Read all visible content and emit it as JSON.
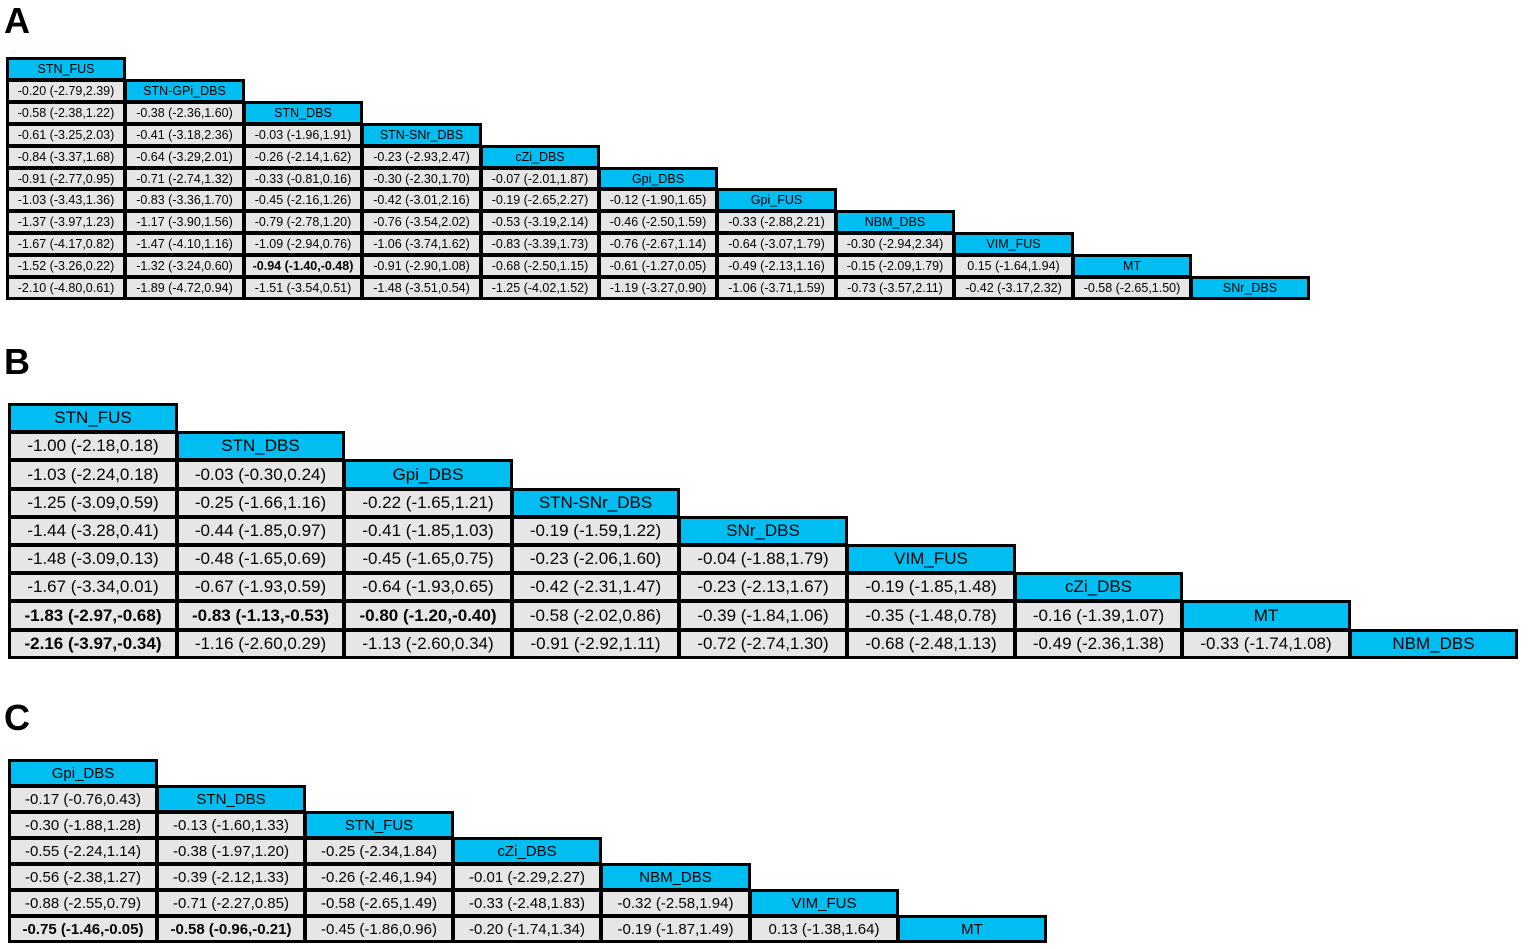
{
  "panels": [
    {
      "label": "A",
      "treatments": [
        "STN_FUS",
        "STN-GPi_DBS",
        "STN_DBS",
        "STN-SNr_DBS",
        "cZi_DBS",
        "Gpi_DBS",
        "Gpi_FUS",
        "NBM_DBS",
        "VIM_FUS",
        "MT",
        "SNr_DBS"
      ],
      "rows": [
        [],
        [
          "-0.20 (-2.79,2.39)"
        ],
        [
          "-0.58 (-2.38,1.22)",
          "-0.38 (-2.36,1.60)"
        ],
        [
          "-0.61 (-3.25,2.03)",
          "-0.41 (-3.18,2.36)",
          "-0.03 (-1.96,1.91)"
        ],
        [
          "-0.84 (-3.37,1.68)",
          "-0.64 (-3.29,2.01)",
          "-0.26 (-2.14,1.62)",
          "-0.23 (-2.93,2.47)"
        ],
        [
          "-0.91 (-2.77,0.95)",
          "-0.71 (-2.74,1.32)",
          "-0.33 (-0.81,0.16)",
          "-0.30 (-2.30,1.70)",
          "-0.07 (-2.01,1.87)"
        ],
        [
          "-1.03 (-3.43,1.36)",
          "-0.83 (-3.36,1.70)",
          "-0.45 (-2.16,1.26)",
          "-0.42 (-3.01,2.16)",
          "-0.19 (-2.65,2.27)",
          "-0.12 (-1.90,1.65)"
        ],
        [
          "-1.37 (-3.97,1.23)",
          "-1.17 (-3.90,1.56)",
          "-0.79 (-2.78,1.20)",
          "-0.76 (-3.54,2.02)",
          "-0.53 (-3.19,2.14)",
          "-0.46 (-2.50,1.59)",
          "-0.33 (-2.88,2.21)"
        ],
        [
          "-1.67 (-4.17,0.82)",
          "-1.47 (-4.10,1.16)",
          "-1.09 (-2.94,0.76)",
          "-1.06 (-3.74,1.62)",
          "-0.83 (-3.39,1.73)",
          "-0.76 (-2.67,1.14)",
          "-0.64 (-3.07,1.79)",
          "-0.30 (-2.94,2.34)"
        ],
        [
          "-1.52 (-3.26,0.22)",
          "-1.32 (-3.24,0.60)",
          "-0.94 (-1.40,-0.48)",
          "-0.91 (-2.90,1.08)",
          "-0.68 (-2.50,1.15)",
          "-0.61 (-1.27,0.05)",
          "-0.49 (-2.13,1.16)",
          "-0.15 (-2.09,1.79)",
          "0.15 (-1.64,1.94)"
        ],
        [
          "-2.10 (-4.80,0.61)",
          "-1.89 (-4.72,0.94)",
          "-1.51 (-3.54,0.51)",
          "-1.48 (-3.51,0.54)",
          "-1.25 (-4.02,1.52)",
          "-1.19 (-3.27,0.90)",
          "-1.06 (-3.71,1.59)",
          "-0.73 (-3.57,2.11)",
          "-0.42 (-3.17,2.32)",
          "-0.58 (-2.65,1.50)"
        ]
      ],
      "bold": [
        [
          9,
          2
        ]
      ]
    },
    {
      "label": "B",
      "treatments": [
        "STN_FUS",
        "STN_DBS",
        "Gpi_DBS",
        "STN-SNr_DBS",
        "SNr_DBS",
        "VIM_FUS",
        "cZi_DBS",
        "MT",
        "NBM_DBS"
      ],
      "rows": [
        [],
        [
          "-1.00 (-2.18,0.18)"
        ],
        [
          "-1.03 (-2.24,0.18)",
          "-0.03 (-0.30,0.24)"
        ],
        [
          "-1.25 (-3.09,0.59)",
          "-0.25 (-1.66,1.16)",
          "-0.22 (-1.65,1.21)"
        ],
        [
          "-1.44 (-3.28,0.41)",
          "-0.44 (-1.85,0.97)",
          "-0.41 (-1.85,1.03)",
          "-0.19 (-1.59,1.22)"
        ],
        [
          "-1.48 (-3.09,0.13)",
          "-0.48 (-1.65,0.69)",
          "-0.45 (-1.65,0.75)",
          "-0.23 (-2.06,1.60)",
          "-0.04 (-1.88,1.79)"
        ],
        [
          "-1.67 (-3.34,0.01)",
          "-0.67 (-1.93,0.59)",
          "-0.64 (-1.93,0.65)",
          "-0.42 (-2.31,1.47)",
          "-0.23 (-2.13,1.67)",
          "-0.19 (-1.85,1.48)"
        ],
        [
          "-1.83 (-2.97,-0.68)",
          "-0.83 (-1.13,-0.53)",
          "-0.80 (-1.20,-0.40)",
          "-0.58 (-2.02,0.86)",
          "-0.39 (-1.84,1.06)",
          "-0.35 (-1.48,0.78)",
          "-0.16 (-1.39,1.07)"
        ],
        [
          "-2.16 (-3.97,-0.34)",
          "-1.16 (-2.60,0.29)",
          "-1.13 (-2.60,0.34)",
          "-0.91 (-2.92,1.11)",
          "-0.72 (-2.74,1.30)",
          "-0.68 (-2.48,1.13)",
          "-0.49 (-2.36,1.38)",
          "-0.33 (-1.74,1.08)"
        ]
      ],
      "bold": [
        [
          7,
          0
        ],
        [
          7,
          1
        ],
        [
          7,
          2
        ],
        [
          8,
          0
        ]
      ]
    },
    {
      "label": "C",
      "treatments": [
        "Gpi_DBS",
        "STN_DBS",
        "STN_FUS",
        "cZi_DBS",
        "NBM_DBS",
        "VIM_FUS",
        "MT"
      ],
      "rows": [
        [],
        [
          "-0.17 (-0.76,0.43)"
        ],
        [
          "-0.30 (-1.88,1.28)",
          "-0.13 (-1.60,1.33)"
        ],
        [
          "-0.55 (-2.24,1.14)",
          "-0.38 (-1.97,1.20)",
          "-0.25 (-2.34,1.84)"
        ],
        [
          "-0.56 (-2.38,1.27)",
          "-0.39 (-2.12,1.33)",
          "-0.26 (-2.46,1.94)",
          "-0.01 (-2.29,2.27)"
        ],
        [
          "-0.88 (-2.55,0.79)",
          "-0.71 (-2.27,0.85)",
          "-0.58 (-2.65,1.49)",
          "-0.33 (-2.48,1.83)",
          "-0.32 (-2.58,1.94)"
        ],
        [
          "-0.75 (-1.46,-0.05)",
          "-0.58 (-0.96,-0.21)",
          "-0.45 (-1.86,0.96)",
          "-0.20 (-1.74,1.34)",
          "-0.19 (-1.87,1.49)",
          "0.13 (-1.38,1.64)"
        ]
      ],
      "bold": [
        [
          6,
          0
        ],
        [
          6,
          1
        ]
      ]
    }
  ]
}
